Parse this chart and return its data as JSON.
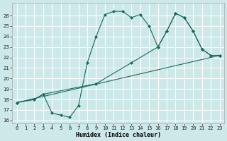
{
  "xlabel": "Humidex (Indice chaleur)",
  "bg_color": "#cce8e8",
  "grid_color": "#ffffff",
  "line_color": "#1a6b5a",
  "xlim": [
    -0.5,
    23.5
  ],
  "ylim": [
    16,
    27
  ],
  "xticks": [
    0,
    1,
    2,
    3,
    4,
    5,
    6,
    7,
    8,
    9,
    10,
    11,
    12,
    13,
    14,
    15,
    16,
    17,
    18,
    19,
    20,
    21,
    22,
    23
  ],
  "yticks": [
    16,
    17,
    18,
    19,
    20,
    21,
    22,
    23,
    24,
    25,
    26
  ],
  "line1_x": [
    0,
    2,
    3,
    4,
    5,
    6,
    7,
    8,
    9,
    10,
    11,
    12,
    13,
    14,
    15,
    16,
    17,
    18,
    19,
    20,
    21,
    22,
    23
  ],
  "line1_y": [
    17.7,
    18.0,
    18.5,
    16.7,
    16.5,
    16.3,
    17.4,
    21.5,
    24.0,
    26.1,
    26.4,
    26.4,
    25.8,
    26.1,
    25.0,
    23.0,
    24.5,
    26.2,
    25.8,
    24.5,
    22.8,
    22.2,
    22.2
  ],
  "line2_x": [
    0,
    2,
    3,
    9,
    13,
    16,
    17,
    18,
    19,
    20,
    21,
    22,
    23
  ],
  "line2_y": [
    17.7,
    18.0,
    18.5,
    19.5,
    21.5,
    23.0,
    24.5,
    26.2,
    25.8,
    24.5,
    22.8,
    22.2,
    22.2
  ],
  "line3_x": [
    0,
    23
  ],
  "line3_y": [
    17.7,
    22.2
  ]
}
